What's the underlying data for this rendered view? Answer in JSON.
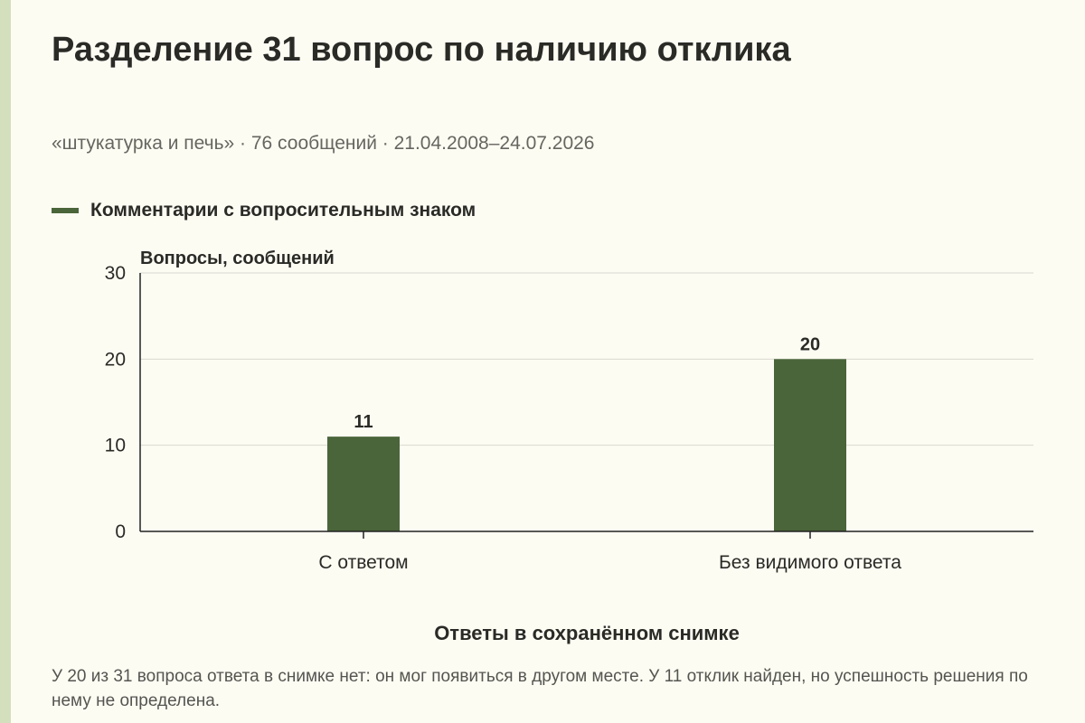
{
  "title": "Разделение 31 вопрос по наличию отклика",
  "subtitle": "«штукатурка и печь» · 76 сообщений · 21.04.2008–24.07.2026",
  "note": "У 20 из 31 вопроса ответа в снимке нет: он мог появиться в другом месте. У 11 отклик найден, но успешность решения по нему не определена.",
  "colors": {
    "bar": "#4a653a",
    "background": "#fdfcf3",
    "stripe": "#d3dfbd",
    "grid": "#d9d9d0",
    "axis": "#222222"
  },
  "chart_data": {
    "type": "bar",
    "title": "Разделение 31 вопрос по наличию отклика",
    "categories": [
      "С ответом",
      "Без видимого ответа"
    ],
    "series": [
      {
        "name": "Комментарии с вопросительным знаком",
        "values": [
          11,
          20
        ]
      }
    ],
    "data_labels": [
      "11",
      "20"
    ],
    "xlabel": "Ответы в сохранённом снимке",
    "ylabel": "Вопросы, сообщений",
    "ylim": [
      0,
      30
    ],
    "yticks": [
      0,
      10,
      20,
      30
    ],
    "grid": true,
    "legend_position": "top-left"
  }
}
